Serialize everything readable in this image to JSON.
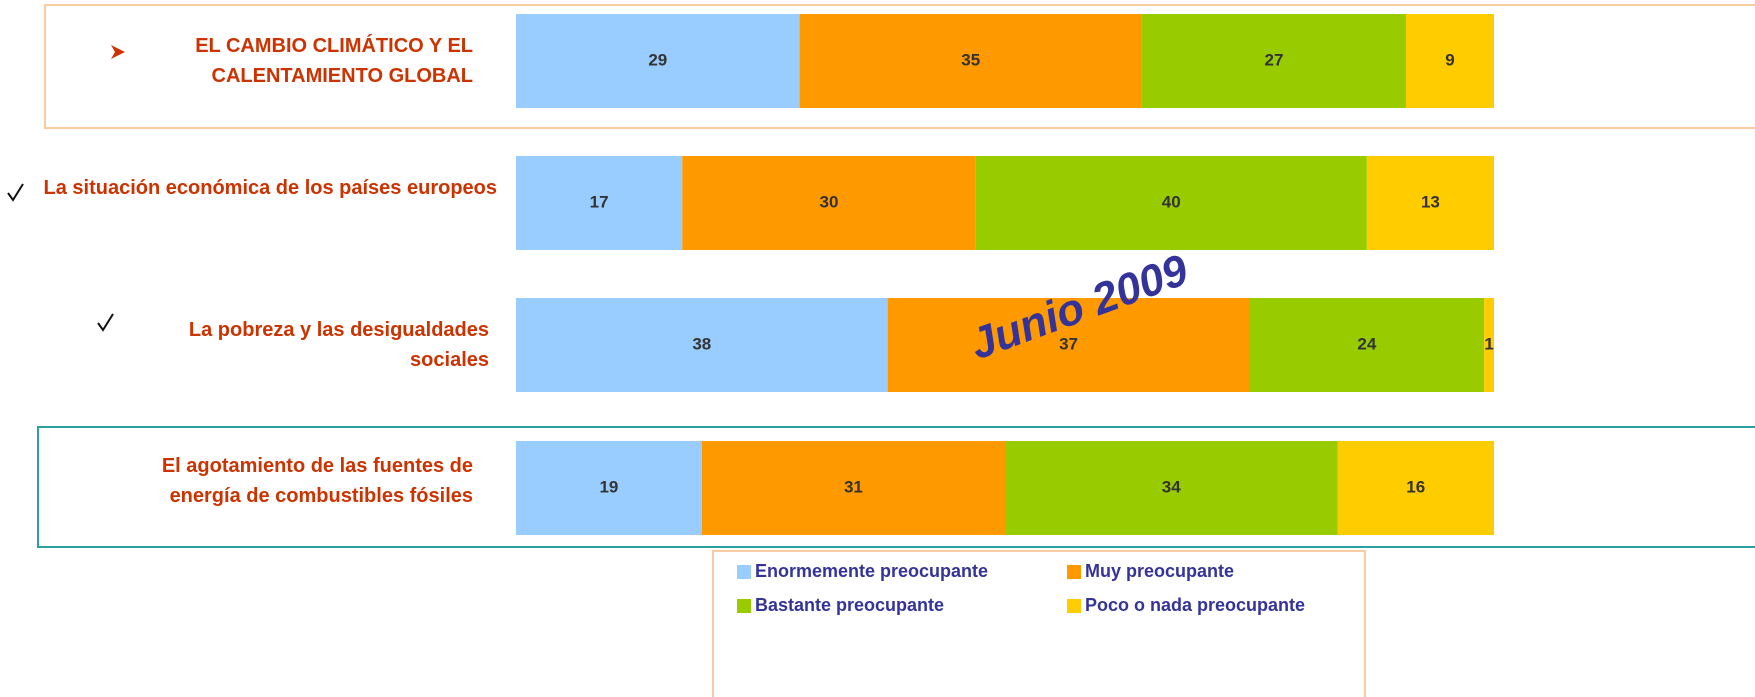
{
  "chart_data": {
    "type": "stacked_bar_horizontal",
    "categories": [
      "EL CAMBIO CLIMÁTICO Y EL CALENTAMIENTO GLOBAL",
      "La situación económica de los países europeos",
      "La pobreza y las desigualdades sociales",
      "El agotamiento de las fuentes de energía de combustibles fósiles"
    ],
    "series": [
      {
        "name": "Enormemente preocupante",
        "color": "#99ccff",
        "values": [
          29,
          17,
          38,
          19
        ]
      },
      {
        "name": "Muy preocupante",
        "color": "#ff9900",
        "values": [
          35,
          30,
          37,
          31
        ]
      },
      {
        "name": "Bastante preocupante",
        "color": "#99cc00",
        "values": [
          27,
          40,
          24,
          34
        ]
      },
      {
        "name": "Poco o nada preocupante",
        "color": "#ffcc00",
        "values": [
          9,
          13,
          1,
          16
        ]
      }
    ],
    "xlim": [
      0,
      100
    ],
    "annotation": "Junio 2009"
  }
}
